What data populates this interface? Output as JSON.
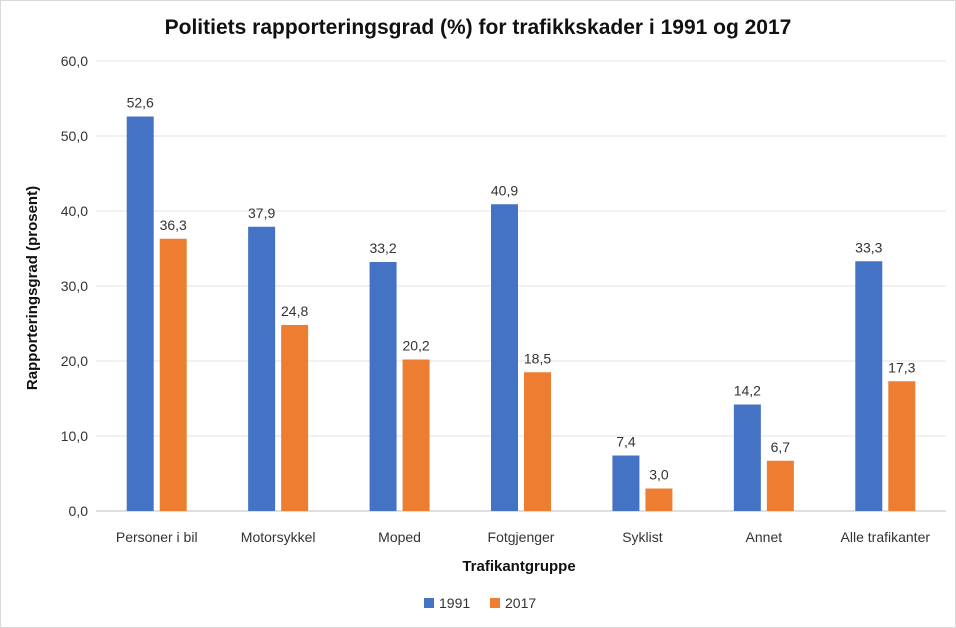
{
  "chart_data": {
    "type": "bar",
    "title": "Politiets rapporteringsgrad (%) for trafikkskader i 1991 og 2017",
    "xlabel": "Trafikantgruppe",
    "ylabel": "Rapporteringsgrad  (prosent)",
    "categories": [
      "Personer i bil",
      "Motorsykkel",
      "Moped",
      "Fotgjenger",
      "Syklist",
      "Annet",
      "Alle trafikanter"
    ],
    "series": [
      {
        "name": "1991",
        "color": "#4472c4",
        "values": [
          52.6,
          37.9,
          33.2,
          40.9,
          7.4,
          14.2,
          33.3
        ],
        "labels": [
          "52,6",
          "37,9",
          "33,2",
          "40,9",
          "7,4",
          "14,2",
          "33,3"
        ]
      },
      {
        "name": "2017",
        "color": "#ed7d31",
        "values": [
          36.3,
          24.8,
          20.2,
          18.5,
          3.0,
          6.7,
          17.3
        ],
        "labels": [
          "36,3",
          "24,8",
          "20,2",
          "18,5",
          "3,0",
          "6,7",
          "17,3"
        ]
      }
    ],
    "ylim": [
      0,
      60
    ],
    "yticks": [
      "0,0",
      "10,0",
      "20,0",
      "30,0",
      "40,0",
      "50,0",
      "60,0"
    ],
    "grid": true,
    "legend_position": "bottom"
  }
}
